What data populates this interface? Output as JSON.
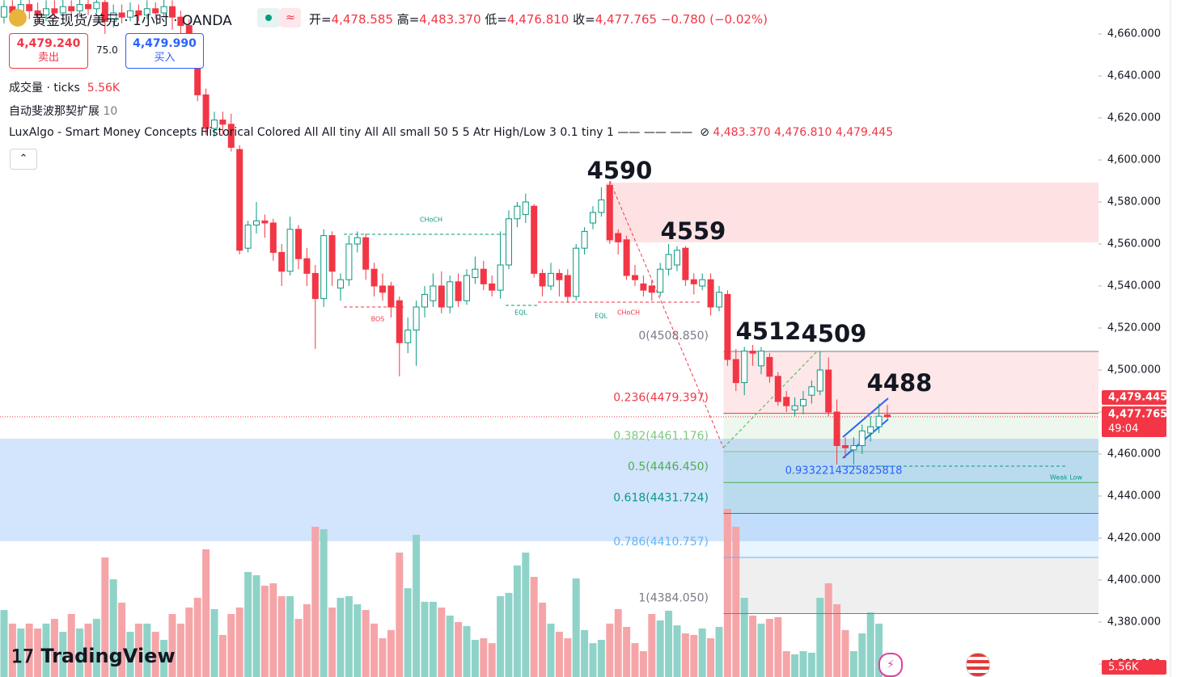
{
  "chart_data": {
    "type": "candlestick",
    "title": "黄金现货/美元 · 1小时 · OANDA",
    "header_ohlc": [
      {
        "label": "开=",
        "value": "4,478.585"
      },
      {
        "label": "高=",
        "value": "4,483.370"
      },
      {
        "label": "低=",
        "value": "4,476.810"
      },
      {
        "label": "收=",
        "value": "4,477.765"
      }
    ],
    "change": "−0.780 (−0.02%)",
    "trade_buttons": {
      "sell_price": "4,479.240",
      "sell": "卖出",
      "spread": "75.0",
      "buy_price": "4,479.990",
      "buy": "买入"
    },
    "legend": {
      "volume_name": "成交量 · ticks",
      "volume_value": "5.56K",
      "fib_name": "自动斐波那契扩展",
      "fib_value": "10",
      "smc_name": "LuxAlgo - Smart Money Concepts Historical Colored All All tiny All All small 50 5 5 Atr High/Low 3 0.1 tiny 1 —— —— ——",
      "smc_values": [
        "4,483.370",
        "4,476.810",
        "4,479.445"
      ]
    },
    "logo": "TradingView",
    "up_color": "#089981",
    "down_color": "#f23645",
    "volume_colors": {
      "up": "#8fd3c8",
      "down": "#f5a5a8"
    },
    "open": [
      4668,
      4673,
      4670,
      4674,
      4671,
      4669,
      4672,
      4670,
      4673,
      4671,
      4674,
      4672,
      4675,
      4666,
      4670,
      4668,
      4671,
      4669,
      4672,
      4670,
      4673,
      4668,
      4664,
      4652,
      4631,
      4615,
      4619,
      4617,
      4605,
      4558,
      4569,
      4571,
      4570,
      4556,
      4547,
      4567,
      4553,
      4546,
      4534,
      4564,
      4539,
      4543,
      4560,
      4563,
      4548,
      4540,
      4540,
      4533,
      4513,
      4519,
      4530,
      4533,
      4540,
      4530,
      4542,
      4533,
      4544,
      4548,
      4541,
      4538,
      4550,
      4572,
      4574,
      4578,
      4546,
      4540,
      4546,
      4545,
      4535,
      4558,
      4570,
      4575,
      4588,
      4565,
      4562,
      4545,
      4541,
      4540,
      4537,
      4548,
      4550,
      4558,
      4543,
      4540,
      4543,
      4530,
      4536,
      4505,
      4494,
      4509,
      4502,
      4506,
      4497,
      4487,
      4481,
      4483,
      4488,
      4490,
      4500,
      4480,
      4464,
      4462,
      4464,
      4470,
      4473,
      4478.585
    ],
    "high": [
      4676,
      4676,
      4678,
      4677,
      4675,
      4676,
      4676,
      4677,
      4676,
      4678,
      4677,
      4679,
      4678,
      4674,
      4674,
      4675,
      4674,
      4676,
      4675,
      4677,
      4676,
      4671,
      4667,
      4655,
      4634,
      4623,
      4623,
      4622,
      4607,
      4571,
      4580,
      4574,
      4572,
      4560,
      4573,
      4569,
      4558,
      4550,
      4567,
      4566,
      4546,
      4564,
      4566,
      4565,
      4551,
      4546,
      4542,
      4535,
      4525,
      4533,
      4540,
      4546,
      4547,
      4545,
      4546,
      4548,
      4554,
      4552,
      4545,
      4566,
      4576,
      4580,
      4584,
      4579,
      4548,
      4551,
      4548,
      4548,
      4560,
      4568,
      4578,
      4587,
      4590,
      4567,
      4564,
      4550,
      4545,
      4543,
      4551,
      4560,
      4559,
      4559,
      4546,
      4546,
      4546,
      4540,
      4538,
      4510,
      4511,
      4512,
      4511,
      4508,
      4499,
      4490,
      4487,
      4490,
      4495,
      4509,
      4506,
      4486,
      4468,
      4468,
      4474,
      4478,
      4484,
      4483.37
    ],
    "low": [
      4665,
      4666,
      4668,
      4667,
      4665,
      4666,
      4667,
      4668,
      4668,
      4669,
      4669,
      4670,
      4660,
      4663,
      4665,
      4666,
      4666,
      4667,
      4667,
      4668,
      4662,
      4660,
      4648,
      4628,
      4612,
      4611,
      4612,
      4604,
      4555,
      4556,
      4565,
      4563,
      4552,
      4540,
      4545,
      4548,
      4540,
      4510,
      4530,
      4540,
      4533,
      4540,
      4556,
      4543,
      4535,
      4533,
      4525,
      4497,
      4508,
      4502,
      4525,
      4530,
      4527,
      4527,
      4530,
      4531,
      4541,
      4538,
      4535,
      4534,
      4548,
      4568,
      4570,
      4544,
      4535,
      4538,
      4535,
      4532,
      4533,
      4555,
      4567,
      4573,
      4560,
      4555,
      4543,
      4540,
      4535,
      4533,
      4535,
      4545,
      4547,
      4540,
      4536,
      4538,
      4526,
      4528,
      4502,
      4490,
      4488,
      4502,
      4498,
      4494,
      4483,
      4480,
      4478,
      4479,
      4484,
      4488,
      4478,
      4455,
      4458,
      4455,
      4460,
      4466,
      4470,
      4476.81
    ],
    "close": [
      4673,
      4670,
      4674,
      4671,
      4669,
      4672,
      4670,
      4673,
      4671,
      4674,
      4672,
      4675,
      4666,
      4670,
      4668,
      4671,
      4669,
      4672,
      4670,
      4673,
      4668,
      4664,
      4655,
      4631,
      4615,
      4619,
      4617,
      4606,
      4557,
      4569,
      4571,
      4570,
      4556,
      4547,
      4567,
      4553,
      4546,
      4534,
      4564,
      4547,
      4543,
      4560,
      4563,
      4548,
      4540,
      4537,
      4530,
      4513,
      4519,
      4530,
      4536,
      4540,
      4530,
      4542,
      4533,
      4545,
      4548,
      4541,
      4538,
      4550,
      4572,
      4578,
      4580,
      4546,
      4540,
      4546,
      4543,
      4535,
      4558,
      4566,
      4575,
      4581,
      4562,
      4561,
      4545,
      4543,
      4538,
      4537,
      4548,
      4555,
      4557,
      4543,
      4541,
      4543,
      4530,
      4537,
      4505,
      4494,
      4509,
      4508,
      4509,
      4497,
      4485,
      4483,
      4483,
      4486,
      4492,
      4500,
      4480,
      4464,
      4463,
      4464,
      4471,
      4473,
      4478,
      4477.765
    ],
    "volume": [
      38.4,
      30.6,
      27.8,
      30.6,
      27.8,
      30.6,
      33.3,
      25.9,
      36.1,
      27.8,
      30.6,
      33.3,
      68.5,
      56.0,
      42.6,
      25.9,
      30.6,
      30.6,
      25.9,
      21.3,
      36.1,
      30.6,
      39.8,
      45.4,
      73.2,
      38.9,
      24.1,
      36.1,
      39.8,
      60.2,
      58.3,
      52.3,
      53.7,
      46.3,
      46.3,
      33.3,
      41.7,
      86.1,
      84.7,
      39.8,
      45.4,
      46.3,
      41.7,
      38.4,
      30.6,
      22.2,
      26.9,
      71.3,
      50.9,
      81.5,
      43.1,
      43.1,
      39.8,
      35.2,
      31.5,
      29.2,
      21.3,
      22.2,
      19.4,
      46.3,
      48.2,
      63.9,
      71.3,
      57.4,
      42.6,
      30.6,
      25.9,
      22.2,
      56.5,
      26.9,
      19.4,
      21.3,
      30.6,
      38.9,
      28.7,
      19.4,
      14.8,
      36.1,
      32.4,
      38.0,
      29.6,
      25.0,
      24.1,
      27.8,
      22.2,
      28.7,
      96.3,
      86.1,
      45.4,
      35.2,
      30.6,
      33.3,
      34.3,
      14.8,
      13.0,
      14.8,
      13.9,
      45.4,
      53.7,
      41.7,
      26.9,
      14.8,
      25.0,
      37.0,
      30.6,
      5.56
    ],
    "volume_ylim": [
      0,
      100
    ],
    "ylim": [
      4353.85,
      4676.15
    ],
    "yticks": [
      {
        "value": 4660,
        "label": "4,660.000"
      },
      {
        "value": 4640,
        "label": "4,640.000"
      },
      {
        "value": 4620,
        "label": "4,620.000"
      },
      {
        "value": 4600,
        "label": "4,600.000"
      },
      {
        "value": 4580,
        "label": "4,580.000"
      },
      {
        "value": 4560,
        "label": "4,560.000"
      },
      {
        "value": 4540,
        "label": "4,540.000"
      },
      {
        "value": 4520,
        "label": "4,520.000"
      },
      {
        "value": 4500,
        "label": "4,500.000"
      },
      {
        "value": 4480,
        "label": "4,480.000"
      },
      {
        "value": 4460,
        "label": "4,460.000"
      },
      {
        "value": 4440,
        "label": "4,440.000"
      },
      {
        "value": 4420,
        "label": "4,420.000"
      },
      {
        "value": 4400,
        "label": "4,400.000"
      },
      {
        "value": 4380,
        "label": "4,380.000"
      },
      {
        "value": 4360,
        "label": "4,360.000"
      }
    ],
    "zones": [
      {
        "top": 4589.2,
        "bottom": 4560.8,
        "from": 72,
        "color": "rgba(242,54,69,0.15)"
      },
      {
        "top": 4508.85,
        "bottom": 4479.397,
        "from": 86,
        "color": "rgba(242,54,69,0.12)"
      },
      {
        "top": 4479.397,
        "bottom": 4461.176,
        "from": 86,
        "color": "rgba(76,175,80,0.10)"
      },
      {
        "top": 4467.3,
        "bottom": 4418.5,
        "from": 0,
        "color": "rgba(33,120,243,0.20)"
      },
      {
        "top": 4461.176,
        "bottom": 4431.724,
        "from": 86,
        "color": "rgba(8,153,129,0.12)"
      },
      {
        "top": 4431.724,
        "bottom": 4410.757,
        "from": 86,
        "color": "rgba(100,181,246,0.15)"
      },
      {
        "top": 4410.757,
        "bottom": 4384.05,
        "from": 86,
        "color": "rgba(120,123,134,0.12)"
      }
    ],
    "fib_levels": [
      {
        "label": "0(4508.850)",
        "value": 4508.85,
        "color": "#787b86"
      },
      {
        "label": "0.236(4479.397)",
        "value": 4479.397,
        "color": "#f23645"
      },
      {
        "label": "0.382(4461.176)",
        "value": 4461.176,
        "color": "#81c784"
      },
      {
        "label": "0.5(4446.450)",
        "value": 4446.45,
        "color": "#4caf50"
      },
      {
        "label": "0.618(4431.724)",
        "value": 4431.724,
        "color": "#089981"
      },
      {
        "label": "0.786(4410.757)",
        "value": 4410.757,
        "color": "#64b5f6"
      },
      {
        "label": "1(4384.050)",
        "value": 4384.05,
        "color": "#787b86"
      }
    ],
    "swing_labels": [
      "4590",
      "4559",
      "4512",
      "4509",
      "4488"
    ],
    "structure_labels": [
      "CHoCH",
      "BOS",
      "EQL",
      "EQL",
      "CHoCH",
      "Weak Low"
    ],
    "channel_label": "0.9332214325825818",
    "last_price_labels": {
      "indicator": "4,479.445",
      "price": "4,477.765",
      "countdown": "49:04",
      "volume": "5.56K"
    }
  }
}
